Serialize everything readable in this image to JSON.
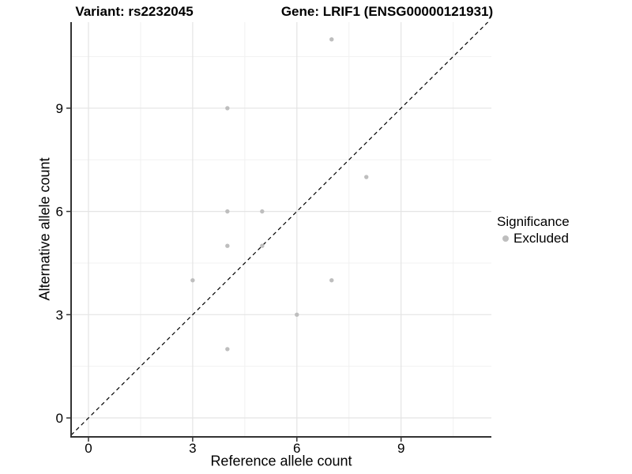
{
  "chart_data": {
    "type": "scatter",
    "titles": {
      "variant": "Variant: rs2232045",
      "gene": "Gene: LRIF1 (ENSG00000121931)"
    },
    "xlabel": "Reference allele count",
    "ylabel": "Alternative allele count",
    "xlim": [
      -0.5,
      11.6
    ],
    "ylim": [
      -0.55,
      11.5
    ],
    "x_breaks": [
      0,
      3,
      6,
      9
    ],
    "y_breaks": [
      0,
      3,
      6,
      9
    ],
    "x_minor_breaks": [
      1.5,
      4.5,
      7.5,
      10.5
    ],
    "y_minor_breaks": [
      1.5,
      4.5,
      7.5,
      10.5
    ],
    "grid": true,
    "legend_position": "right",
    "legend": {
      "title": "Significance",
      "items": [
        {
          "label": "Excluded",
          "color": "#bebebe"
        }
      ]
    },
    "series": [
      {
        "name": "Excluded",
        "color": "#bebebe",
        "points": [
          [
            7,
            11
          ],
          [
            4,
            9
          ],
          [
            8,
            7
          ],
          [
            4,
            6
          ],
          [
            5,
            6
          ],
          [
            4,
            5
          ],
          [
            5,
            5
          ],
          [
            3,
            4
          ],
          [
            7,
            4
          ],
          [
            6,
            3
          ],
          [
            4,
            2
          ]
        ]
      }
    ],
    "reference_line": {
      "type": "identity",
      "slope": 1,
      "intercept": 0,
      "style": "dashed",
      "color": "#000000"
    }
  },
  "colors": {
    "point": "#bebebe",
    "axis_line": "#333333",
    "tick_label": "#000000",
    "grid_major": "#e4e4e4",
    "grid_minor": "#f1f1f1",
    "background": "#ffffff"
  }
}
